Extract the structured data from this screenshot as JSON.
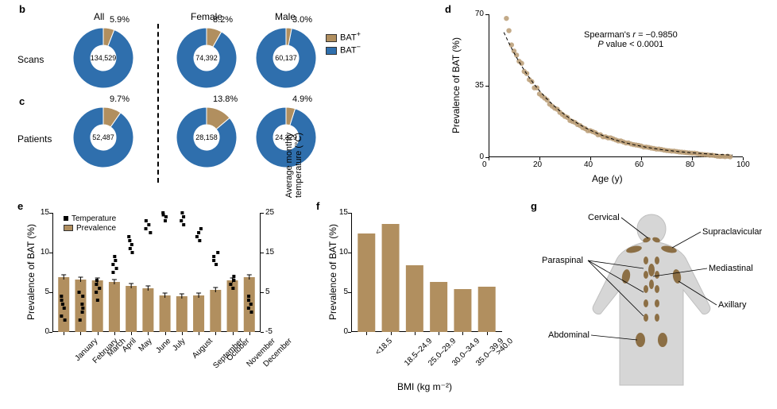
{
  "colors": {
    "bat_plus": "#b18f5f",
    "bat_minus": "#2f6fad",
    "bar": "#b18f5f",
    "point": "#b99b73",
    "body_fill": "#d6d6d6",
    "bat_depot": "#8c6f45"
  },
  "panel_bc": {
    "label_b": "b",
    "label_c": "c",
    "columns": [
      "All",
      "Female",
      "Male"
    ],
    "row_scans": "Scans",
    "row_patients": "Patients",
    "legend_plus": "BAT",
    "legend_plus_sup": "+",
    "legend_minus": "BAT",
    "legend_minus_sup": "−",
    "donuts": {
      "scans_all": {
        "pct_label": "5.9%",
        "fraction": 0.059,
        "center": "134,529"
      },
      "scans_female": {
        "pct_label": "8.2%",
        "fraction": 0.082,
        "center": "74,392"
      },
      "scans_male": {
        "pct_label": "3.0%",
        "fraction": 0.03,
        "center": "60,137"
      },
      "pat_all": {
        "pct_label": "9.7%",
        "fraction": 0.097,
        "center": "52,487"
      },
      "pat_female": {
        "pct_label": "13.8%",
        "fraction": 0.138,
        "center": "28,158"
      },
      "pat_male": {
        "pct_label": "4.9%",
        "fraction": 0.049,
        "center": "24,329"
      }
    }
  },
  "panel_d": {
    "label": "d",
    "xlabel": "Age (y)",
    "ylabel": "Prevalence of BAT (%)",
    "xlim": [
      0,
      100
    ],
    "ylim": [
      0,
      70
    ],
    "xticks": [
      0,
      20,
      40,
      60,
      80,
      100
    ],
    "yticks": [
      0,
      35,
      70
    ],
    "annot1": "Spearman's r = −0.9850",
    "annot2": "P value < 0.0001",
    "points": [
      [
        7,
        68
      ],
      [
        8,
        62
      ],
      [
        9,
        55
      ],
      [
        10,
        52
      ],
      [
        11,
        50
      ],
      [
        12,
        47
      ],
      [
        13,
        46
      ],
      [
        14,
        42
      ],
      [
        15,
        41
      ],
      [
        16,
        38
      ],
      [
        17,
        37
      ],
      [
        18,
        34
      ],
      [
        19,
        34
      ],
      [
        20,
        31
      ],
      [
        21,
        30
      ],
      [
        22,
        29
      ],
      [
        23,
        28
      ],
      [
        24,
        26
      ],
      [
        25,
        25
      ],
      [
        26,
        24
      ],
      [
        27,
        23.5
      ],
      [
        28,
        22
      ],
      [
        29,
        21
      ],
      [
        30,
        20
      ],
      [
        31,
        19.5
      ],
      [
        32,
        18
      ],
      [
        33,
        17.5
      ],
      [
        34,
        17
      ],
      [
        35,
        16
      ],
      [
        36,
        15.5
      ],
      [
        37,
        14.5
      ],
      [
        38,
        14
      ],
      [
        39,
        13
      ],
      [
        40,
        13
      ],
      [
        41,
        12.5
      ],
      [
        42,
        12
      ],
      [
        43,
        11
      ],
      [
        44,
        11
      ],
      [
        45,
        10
      ],
      [
        46,
        10
      ],
      [
        47,
        9.5
      ],
      [
        48,
        9.5
      ],
      [
        49,
        9
      ],
      [
        50,
        8.5
      ],
      [
        51,
        8
      ],
      [
        52,
        8
      ],
      [
        53,
        7.5
      ],
      [
        54,
        7
      ],
      [
        55,
        7
      ],
      [
        56,
        6.5
      ],
      [
        57,
        6.2
      ],
      [
        58,
        6
      ],
      [
        59,
        5.8
      ],
      [
        60,
        5.5
      ],
      [
        61,
        5
      ],
      [
        62,
        5
      ],
      [
        63,
        4.8
      ],
      [
        64,
        4.5
      ],
      [
        65,
        4.3
      ],
      [
        66,
        4
      ],
      [
        67,
        4
      ],
      [
        68,
        3.8
      ],
      [
        69,
        3.5
      ],
      [
        70,
        3.3
      ],
      [
        71,
        3.2
      ],
      [
        72,
        3
      ],
      [
        73,
        3
      ],
      [
        74,
        2.8
      ],
      [
        75,
        2.6
      ],
      [
        76,
        2.5
      ],
      [
        77,
        2.4
      ],
      [
        78,
        2.2
      ],
      [
        79,
        2.1
      ],
      [
        80,
        2
      ],
      [
        81,
        2
      ],
      [
        82,
        1.8
      ],
      [
        83,
        1.5
      ],
      [
        84,
        1.4
      ],
      [
        85,
        1.3
      ],
      [
        86,
        1.2
      ],
      [
        87,
        1
      ],
      [
        88,
        1
      ],
      [
        89,
        0.8
      ],
      [
        90,
        0.5
      ],
      [
        91,
        0.4
      ],
      [
        92,
        0.5
      ],
      [
        93,
        0.3
      ],
      [
        94,
        0.5
      ],
      [
        95,
        0.2
      ]
    ]
  },
  "panel_e": {
    "label": "e",
    "ylabel_left": "Prevalence of BAT (%)",
    "ylabel_right": "Average monthly\ntemperature (°C)",
    "legend_temp": "Temperature",
    "legend_prev": "Prevalence",
    "ylim_left": [
      0,
      15
    ],
    "yticks_left": [
      0,
      5,
      10,
      15
    ],
    "ylim_right": [
      -5,
      25
    ],
    "yticks_right": [
      -5,
      5,
      15,
      25
    ],
    "months": [
      "January",
      "February",
      "March",
      "April",
      "May",
      "June",
      "July",
      "August",
      "September",
      "October",
      "November",
      "December"
    ],
    "prevalence": [
      6.9,
      6.6,
      6.5,
      6.3,
      5.8,
      5.5,
      4.6,
      4.5,
      4.6,
      5.3,
      6.5,
      6.9
    ],
    "prev_err": [
      0.3,
      0.3,
      0.3,
      0.3,
      0.3,
      0.3,
      0.3,
      0.3,
      0.3,
      0.3,
      0.3,
      0.3
    ],
    "temp_points": [
      [
        0,
        -2
      ],
      [
        0,
        -1
      ],
      [
        0,
        1
      ],
      [
        0,
        2
      ],
      [
        0,
        3
      ],
      [
        0,
        4
      ],
      [
        1,
        -2
      ],
      [
        1,
        0
      ],
      [
        1,
        1
      ],
      [
        1,
        4
      ],
      [
        1,
        5
      ],
      [
        1,
        2
      ],
      [
        2,
        3
      ],
      [
        2,
        5
      ],
      [
        2,
        6
      ],
      [
        2,
        8
      ],
      [
        2,
        7
      ],
      [
        3,
        10
      ],
      [
        3,
        12
      ],
      [
        3,
        13
      ],
      [
        3,
        11
      ],
      [
        3,
        14
      ],
      [
        4,
        15
      ],
      [
        4,
        17
      ],
      [
        4,
        18
      ],
      [
        4,
        16
      ],
      [
        4,
        19
      ],
      [
        5,
        21
      ],
      [
        5,
        22
      ],
      [
        5,
        23
      ],
      [
        5,
        20
      ],
      [
        6,
        24
      ],
      [
        6,
        25
      ],
      [
        6,
        24.5
      ],
      [
        6,
        23
      ],
      [
        7,
        23
      ],
      [
        7,
        24
      ],
      [
        7,
        22
      ],
      [
        7,
        25
      ],
      [
        8,
        19
      ],
      [
        8,
        20
      ],
      [
        8,
        18
      ],
      [
        8,
        21
      ],
      [
        9,
        12
      ],
      [
        9,
        13
      ],
      [
        9,
        14
      ],
      [
        9,
        15
      ],
      [
        10,
        7
      ],
      [
        10,
        8
      ],
      [
        10,
        6
      ],
      [
        10,
        9
      ],
      [
        11,
        2
      ],
      [
        11,
        3
      ],
      [
        11,
        4
      ],
      [
        11,
        1
      ],
      [
        11,
        0
      ]
    ]
  },
  "panel_f": {
    "label": "f",
    "xlabel": "BMI (kg m⁻²)",
    "ylabel": "Prevalence of BAT (%)",
    "ylim": [
      0,
      15
    ],
    "yticks": [
      0,
      5,
      10,
      15
    ],
    "categories": [
      "<18.5",
      "18.5–24.9",
      "25.0–29.9",
      "30.0–34.9",
      "35.0–39.9",
      ">40.0"
    ],
    "values": [
      12.4,
      13.6,
      8.4,
      6.3,
      5.4,
      5.7
    ]
  },
  "panel_g": {
    "label": "g",
    "regions": {
      "cervical": "Cervical",
      "supraclavicular": "Supraclavicular",
      "paraspinal": "Paraspinal",
      "mediastinal": "Mediastinal",
      "axillary": "Axillary",
      "abdominal": "Abdominal"
    }
  }
}
